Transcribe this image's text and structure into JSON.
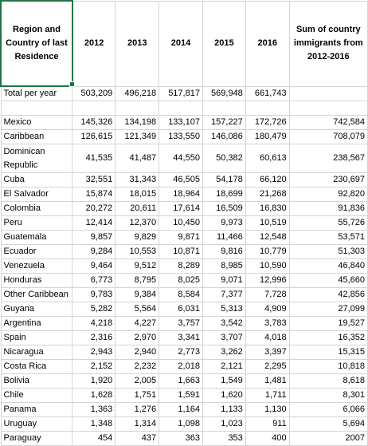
{
  "sheet": {
    "header": {
      "region": "Region and Country of last Residence",
      "years": [
        "2012",
        "2013",
        "2014",
        "2015",
        "2016"
      ],
      "sum": "Sum of country immigrants from 2012-2016"
    },
    "total": {
      "label": "Total per year",
      "values": [
        "503,209",
        "496,218",
        "517,817",
        "569,948",
        "661,743"
      ],
      "sum": ""
    },
    "rows": [
      {
        "country": "Mexico",
        "values": [
          "145,326",
          "134,198",
          "133,107",
          "157,227",
          "172,726"
        ],
        "sum": "742,584"
      },
      {
        "country": "Caribbean",
        "values": [
          "126,615",
          "121,349",
          "133,550",
          "146,086",
          "180,479"
        ],
        "sum": "708,079"
      },
      {
        "country": "Dominican Republic",
        "values": [
          "41,535",
          "41,487",
          "44,550",
          "50,382",
          "60,613"
        ],
        "sum": "238,567"
      },
      {
        "country": "Cuba",
        "values": [
          "32,551",
          "31,343",
          "46,505",
          "54,178",
          "66,120"
        ],
        "sum": "230,697"
      },
      {
        "country": "El Salvador",
        "values": [
          "15,874",
          "18,015",
          "18,964",
          "18,699",
          "21,268"
        ],
        "sum": "92,820"
      },
      {
        "country": "Colombia",
        "values": [
          "20,272",
          "20,611",
          "17,614",
          "16,509",
          "16,830"
        ],
        "sum": "91,836"
      },
      {
        "country": "Peru",
        "values": [
          "12,414",
          "12,370",
          "10,450",
          "9,973",
          "10,519"
        ],
        "sum": "55,726"
      },
      {
        "country": "Guatemala",
        "values": [
          "9,857",
          "9,829",
          "9,871",
          "11,466",
          "12,548"
        ],
        "sum": "53,571"
      },
      {
        "country": "Ecuador",
        "values": [
          "9,284",
          "10,553",
          "10,871",
          "9,816",
          "10,779"
        ],
        "sum": "51,303"
      },
      {
        "country": "Venezuela",
        "values": [
          "9,464",
          "9,512",
          "8,289",
          "8,985",
          "10,590"
        ],
        "sum": "46,840"
      },
      {
        "country": "Honduras",
        "values": [
          "6,773",
          "8,795",
          "8,025",
          "9,071",
          "12,996"
        ],
        "sum": "45,660"
      },
      {
        "country": "Other Caribbean",
        "values": [
          "9,783",
          "9,384",
          "8,584",
          "7,377",
          "7,728"
        ],
        "sum": "42,856"
      },
      {
        "country": "Guyana",
        "values": [
          "5,282",
          "5,564",
          "6,031",
          "5,313",
          "4,909"
        ],
        "sum": "27,099"
      },
      {
        "country": "Argentina",
        "values": [
          "4,218",
          "4,227",
          "3,757",
          "3,542",
          "3,783"
        ],
        "sum": "19,527"
      },
      {
        "country": "Spain",
        "values": [
          "2,316",
          "2,970",
          "3,341",
          "3,707",
          "4,018"
        ],
        "sum": "16,352"
      },
      {
        "country": "Nicaragua",
        "values": [
          "2,943",
          "2,940",
          "2,773",
          "3,262",
          "3,397"
        ],
        "sum": "15,315"
      },
      {
        "country": "Costa Rica",
        "values": [
          "2,152",
          "2,232",
          "2,018",
          "2,121",
          "2,295"
        ],
        "sum": "10,818"
      },
      {
        "country": "Bolivia",
        "values": [
          "1,920",
          "2,005",
          "1,663",
          "1,549",
          "1,481"
        ],
        "sum": "8,618"
      },
      {
        "country": "Chile",
        "values": [
          "1,628",
          "1,751",
          "1,591",
          "1,620",
          "1,711"
        ],
        "sum": "8,301"
      },
      {
        "country": "Panama",
        "values": [
          "1,363",
          "1,276",
          "1,164",
          "1,133",
          "1,130"
        ],
        "sum": "6,066"
      },
      {
        "country": "Uruguay",
        "values": [
          "1,348",
          "1,314",
          "1,098",
          "1,023",
          "911"
        ],
        "sum": "5,694"
      },
      {
        "country": "Paraguay",
        "values": [
          "454",
          "437",
          "363",
          "353",
          "400"
        ],
        "sum": "2007"
      }
    ]
  }
}
